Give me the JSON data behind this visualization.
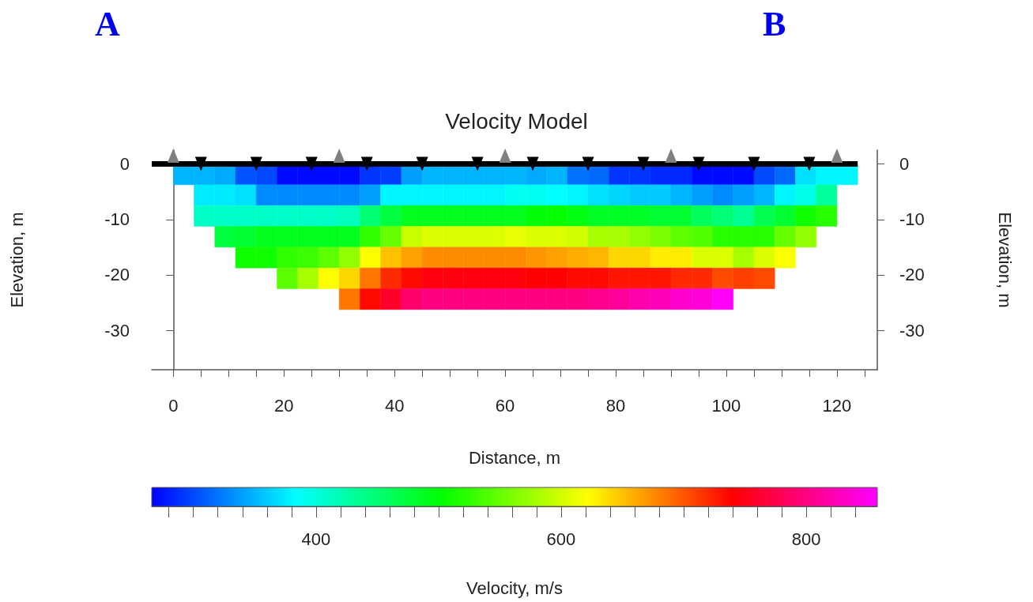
{
  "chart_data": {
    "type": "heatmap",
    "title": "Velocity Model",
    "xlabel": "Distance, m",
    "ylabel": "Elevation, m",
    "y2label": "Elevation, m",
    "clabel": "Velocity, m/s",
    "annotations": [
      "A",
      "B"
    ],
    "x": [
      1.875,
      5.625,
      9.375,
      13.125,
      16.875,
      20.625,
      24.375,
      28.125,
      31.875,
      35.625,
      39.375,
      43.125,
      46.875,
      50.625,
      54.375,
      58.125,
      61.875,
      65.625,
      69.375,
      73.125,
      76.875,
      80.625,
      84.375,
      88.125,
      91.875,
      95.625,
      99.375,
      103.125,
      106.875,
      110.625,
      114.375,
      118.125,
      121.875
    ],
    "y": [
      -1.875,
      -5.625,
      -9.375,
      -13.125,
      -16.875,
      -20.625,
      -24.375
    ],
    "cells": [
      [
        350,
        350,
        345,
        305,
        300,
        270,
        270,
        270,
        270,
        290,
        295,
        340,
        350,
        350,
        350,
        350,
        350,
        345,
        350,
        320,
        315,
        290,
        290,
        285,
        285,
        270,
        270,
        270,
        300,
        315,
        370,
        380,
        380
      ],
      [
        null,
        375,
        375,
        370,
        330,
        330,
        330,
        330,
        330,
        340,
        380,
        380,
        380,
        380,
        380,
        380,
        390,
        390,
        385,
        380,
        370,
        365,
        360,
        360,
        350,
        340,
        330,
        340,
        350,
        380,
        395,
        430,
        null
      ],
      [
        null,
        410,
        410,
        410,
        410,
        410,
        410,
        410,
        415,
        450,
        475,
        490,
        490,
        490,
        490,
        490,
        490,
        500,
        505,
        495,
        485,
        485,
        485,
        480,
        480,
        460,
        450,
        435,
        465,
        480,
        510,
        520,
        null
      ],
      [
        null,
        null,
        475,
        480,
        490,
        490,
        490,
        490,
        490,
        525,
        550,
        595,
        605,
        605,
        605,
        605,
        610,
        605,
        605,
        600,
        580,
        580,
        570,
        560,
        545,
        540,
        520,
        520,
        520,
        550,
        570,
        null,
        null
      ],
      [
        null,
        null,
        null,
        510,
        510,
        525,
        530,
        545,
        570,
        620,
        650,
        665,
        675,
        675,
        675,
        675,
        675,
        670,
        665,
        660,
        655,
        640,
        640,
        630,
        630,
        605,
        605,
        580,
        605,
        620,
        null,
        null,
        null
      ],
      [
        null,
        null,
        null,
        null,
        null,
        545,
        580,
        620,
        640,
        685,
        720,
        735,
        745,
        745,
        745,
        745,
        745,
        740,
        740,
        735,
        735,
        730,
        730,
        730,
        720,
        720,
        705,
        710,
        705,
        null,
        null,
        null,
        null
      ],
      [
        null,
        null,
        null,
        null,
        null,
        null,
        null,
        null,
        685,
        735,
        760,
        790,
        800,
        800,
        800,
        800,
        800,
        800,
        800,
        800,
        805,
        810,
        820,
        825,
        835,
        840,
        855,
        null,
        null,
        null,
        null,
        null,
        null
      ]
    ],
    "series": [
      {
        "type": "line",
        "x": [
          -3.9,
          123.75
        ],
        "values": [
          0,
          0
        ],
        "color": "#000000",
        "marker": "none"
      },
      {
        "type": "scatter",
        "x": [
          0,
          30,
          60,
          90,
          120
        ],
        "values": [
          1.5,
          1.5,
          1.5,
          1.5,
          1.5
        ],
        "color": "#808080",
        "marker": "triangle"
      },
      {
        "type": "scatter",
        "x": [
          5,
          15,
          25,
          35,
          45,
          55,
          65,
          75,
          85,
          95,
          105,
          115
        ],
        "values": [
          0,
          0,
          0,
          0,
          0,
          0,
          0,
          0,
          0,
          0,
          0,
          0
        ],
        "color": "#000000",
        "marker": "triangle_down"
      }
    ],
    "xlim": [
      -3.9,
      127.3
    ],
    "xticks": [
      0,
      {
        "value": 5,
        "label": null
      },
      {
        "value": 10,
        "label": null
      },
      {
        "value": 15,
        "label": null
      },
      20,
      {
        "value": 25,
        "label": null
      },
      {
        "value": 30,
        "label": null
      },
      {
        "value": 35,
        "label": null
      },
      40,
      {
        "value": 45,
        "label": null
      },
      {
        "value": 50,
        "label": null
      },
      {
        "value": 55,
        "label": null
      },
      60,
      {
        "value": 65,
        "label": null
      },
      {
        "value": 70,
        "label": null
      },
      {
        "value": 75,
        "label": null
      },
      80,
      {
        "value": 85,
        "label": null
      },
      {
        "value": 90,
        "label": null
      },
      {
        "value": 95,
        "label": null
      },
      100,
      {
        "value": 105,
        "label": null
      },
      {
        "value": 110,
        "label": null
      },
      {
        "value": 115,
        "label": null
      },
      120,
      {
        "value": 125,
        "label": null
      }
    ],
    "ylim": [
      -37.1,
      2.5
    ],
    "yticks": [
      -30,
      -20,
      -10,
      0
    ],
    "y2lim": [
      -37.1,
      2.5
    ],
    "y2ticks": [
      -30,
      -20,
      -10,
      0
    ],
    "clim": [
      266,
      858
    ],
    "cticks": [
      {
        "value": 280,
        "label": null
      },
      {
        "value": 300,
        "label": null
      },
      {
        "value": 320,
        "label": null
      },
      {
        "value": 340,
        "label": null
      },
      {
        "value": 360,
        "label": null
      },
      {
        "value": 380,
        "label": null
      },
      400,
      {
        "value": 420,
        "label": null
      },
      {
        "value": 440,
        "label": null
      },
      {
        "value": 460,
        "label": null
      },
      {
        "value": 480,
        "label": null
      },
      {
        "value": 500,
        "label": null
      },
      {
        "value": 520,
        "label": null
      },
      {
        "value": 540,
        "label": null
      },
      {
        "value": 560,
        "label": null
      },
      {
        "value": 580,
        "label": null
      },
      600,
      {
        "value": 620,
        "label": null
      },
      {
        "value": 640,
        "label": null
      },
      {
        "value": 660,
        "label": null
      },
      {
        "value": 680,
        "label": null
      },
      {
        "value": 700,
        "label": null
      },
      {
        "value": 720,
        "label": null
      },
      {
        "value": 740,
        "label": null
      },
      {
        "value": 760,
        "label": null
      },
      {
        "value": 780,
        "label": null
      },
      800,
      {
        "value": 820,
        "label": null
      },
      {
        "value": 840,
        "label": null
      }
    ],
    "grid": false
  }
}
